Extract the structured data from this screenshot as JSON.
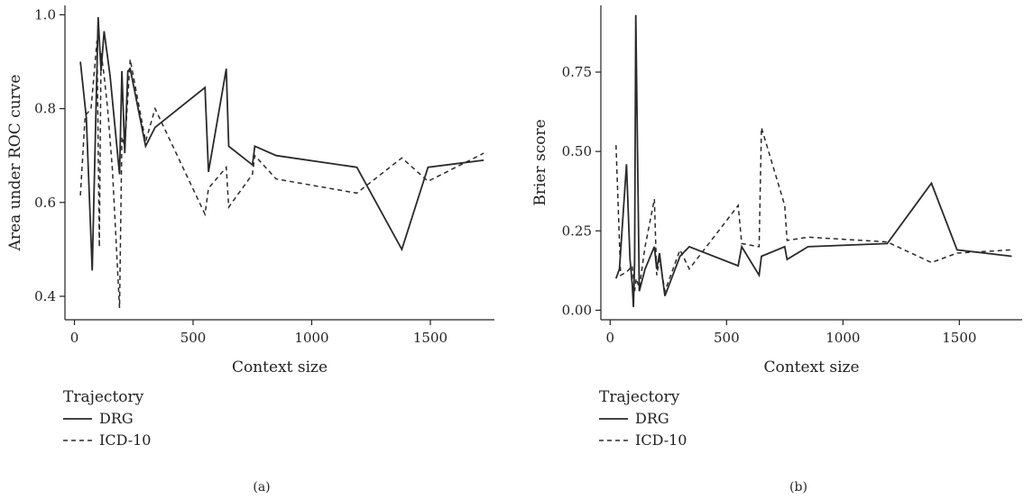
{
  "chart_data": [
    {
      "type": "line",
      "panel_label": "(a)",
      "xlabel": "Context size",
      "ylabel": "Area under ROC curve",
      "xlim": [
        -40,
        1770
      ],
      "ylim": [
        0.35,
        1.02
      ],
      "xticks": [
        0,
        500,
        1000,
        1500
      ],
      "yticks": [
        0.4,
        0.6,
        0.8,
        1.0
      ],
      "xtick_labels": [
        "0",
        "500",
        "1000",
        "1500"
      ],
      "ytick_labels": [
        "0.4",
        "0.6",
        "0.8",
        "1.0"
      ],
      "grid": false,
      "legend_position": "bottom-left",
      "legend_title": "Trajectory",
      "series": [
        {
          "name": "DRG",
          "style": "solid",
          "x": [
            25,
            50,
            75,
            100,
            112,
            125,
            150,
            190,
            200,
            212,
            225,
            235,
            300,
            340,
            550,
            565,
            640,
            650,
            750,
            760,
            850,
            1190,
            1380,
            1490,
            1725
          ],
          "y": [
            0.9,
            0.78,
            0.455,
            0.995,
            0.88,
            0.965,
            0.87,
            0.66,
            0.88,
            0.705,
            0.88,
            0.885,
            0.72,
            0.76,
            0.845,
            0.665,
            0.885,
            0.72,
            0.68,
            0.72,
            0.7,
            0.675,
            0.5,
            0.675,
            0.69
          ]
        },
        {
          "name": "ICD-10",
          "style": "dashed",
          "x": [
            25,
            45,
            70,
            95,
            105,
            112,
            125,
            140,
            160,
            190,
            200,
            212,
            235,
            300,
            340,
            550,
            565,
            640,
            650,
            750,
            760,
            850,
            1190,
            1380,
            1490,
            1725
          ],
          "y": [
            0.615,
            0.785,
            0.8,
            0.945,
            0.505,
            0.92,
            0.87,
            0.8,
            0.67,
            0.375,
            0.74,
            0.72,
            0.905,
            0.73,
            0.8,
            0.575,
            0.63,
            0.675,
            0.59,
            0.66,
            0.7,
            0.65,
            0.62,
            0.695,
            0.645,
            0.705
          ]
        }
      ]
    },
    {
      "type": "line",
      "panel_label": "(b)",
      "xlabel": "Context size",
      "ylabel": "Brier score",
      "xlim": [
        -40,
        1770
      ],
      "ylim": [
        -0.03,
        0.96
      ],
      "xticks": [
        0,
        500,
        1000,
        1500
      ],
      "yticks": [
        0.0,
        0.25,
        0.5,
        0.75
      ],
      "xtick_labels": [
        "0",
        "500",
        "1000",
        "1500"
      ],
      "ytick_labels": [
        "0.00",
        "0.25",
        "0.50",
        "0.75"
      ],
      "grid": false,
      "legend_position": "bottom-left",
      "legend_title": "Trajectory",
      "series": [
        {
          "name": "DRG",
          "style": "solid",
          "x": [
            25,
            40,
            70,
            85,
            95,
            100,
            105,
            110,
            125,
            150,
            190,
            200,
            212,
            225,
            235,
            300,
            340,
            550,
            565,
            640,
            650,
            750,
            760,
            850,
            1190,
            1380,
            1490,
            1725
          ],
          "y": [
            0.1,
            0.13,
            0.46,
            0.16,
            0.08,
            0.01,
            0.15,
            0.93,
            0.06,
            0.13,
            0.2,
            0.13,
            0.18,
            0.1,
            0.045,
            0.17,
            0.2,
            0.14,
            0.2,
            0.11,
            0.17,
            0.2,
            0.16,
            0.2,
            0.21,
            0.4,
            0.19,
            0.17
          ]
        },
        {
          "name": "ICD-10",
          "style": "dashed",
          "x": [
            25,
            45,
            70,
            95,
            105,
            112,
            125,
            150,
            190,
            200,
            212,
            235,
            300,
            340,
            550,
            565,
            640,
            650,
            750,
            760,
            850,
            1190,
            1380,
            1490,
            1725
          ],
          "y": [
            0.52,
            0.11,
            0.12,
            0.14,
            0.06,
            0.1,
            0.07,
            0.2,
            0.35,
            0.11,
            0.16,
            0.06,
            0.19,
            0.13,
            0.33,
            0.21,
            0.2,
            0.575,
            0.33,
            0.22,
            0.23,
            0.215,
            0.15,
            0.18,
            0.19
          ]
        }
      ]
    }
  ]
}
